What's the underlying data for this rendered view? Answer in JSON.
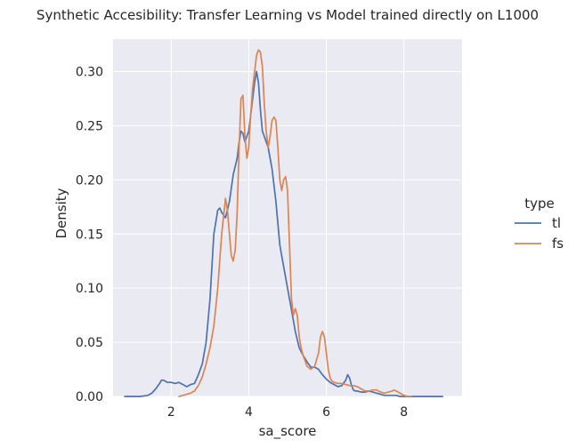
{
  "chart_data": {
    "type": "line",
    "title": "Synthetic Accesibility: Transfer Learning vs Model trained directly on L1000",
    "xlabel": "sa_score",
    "ylabel": "Density",
    "xlim": [
      0.5,
      9.5
    ],
    "ylim": [
      0,
      0.33
    ],
    "xticks": [
      2,
      4,
      6,
      8
    ],
    "xtick_labels": [
      "2",
      "4",
      "6",
      "8"
    ],
    "yticks": [
      0.0,
      0.05,
      0.1,
      0.15,
      0.2,
      0.25,
      0.3
    ],
    "ytick_labels": [
      "0.00",
      "0.05",
      "0.10",
      "0.15",
      "0.20",
      "0.25",
      "0.30"
    ],
    "grid": true,
    "legend": {
      "title": "type",
      "placement": "right"
    },
    "series": [
      {
        "name": "tl",
        "color": "#4c72b0",
        "x": [
          0.8,
          1.0,
          1.2,
          1.4,
          1.5,
          1.6,
          1.7,
          1.75,
          1.8,
          1.85,
          1.9,
          2.0,
          2.1,
          2.2,
          2.3,
          2.4,
          2.5,
          2.6,
          2.7,
          2.8,
          2.9,
          3.0,
          3.1,
          3.2,
          3.25,
          3.3,
          3.4,
          3.5,
          3.6,
          3.7,
          3.75,
          3.8,
          3.85,
          3.9,
          4.0,
          4.1,
          4.15,
          4.2,
          4.25,
          4.3,
          4.35,
          4.4,
          4.5,
          4.6,
          4.7,
          4.8,
          4.9,
          5.0,
          5.1,
          5.2,
          5.3,
          5.4,
          5.5,
          5.6,
          5.7,
          5.8,
          5.9,
          6.0,
          6.1,
          6.2,
          6.3,
          6.4,
          6.5,
          6.55,
          6.6,
          6.65,
          6.7,
          6.75,
          6.8,
          6.9,
          7.0,
          7.1,
          7.2,
          7.3,
          7.4,
          7.5,
          7.6,
          7.7,
          7.8,
          7.9,
          8.0,
          8.2,
          8.4,
          8.6,
          8.8,
          9.0
        ],
        "y": [
          0,
          0,
          0,
          0.001,
          0.003,
          0.007,
          0.012,
          0.015,
          0.015,
          0.014,
          0.013,
          0.013,
          0.012,
          0.013,
          0.011,
          0.009,
          0.011,
          0.012,
          0.02,
          0.03,
          0.05,
          0.09,
          0.15,
          0.172,
          0.174,
          0.17,
          0.165,
          0.18,
          0.205,
          0.22,
          0.235,
          0.245,
          0.243,
          0.235,
          0.245,
          0.275,
          0.29,
          0.3,
          0.29,
          0.265,
          0.245,
          0.24,
          0.23,
          0.21,
          0.18,
          0.14,
          0.12,
          0.1,
          0.08,
          0.06,
          0.045,
          0.038,
          0.032,
          0.027,
          0.027,
          0.025,
          0.02,
          0.016,
          0.013,
          0.011,
          0.009,
          0.01,
          0.015,
          0.02,
          0.017,
          0.01,
          0.006,
          0.005,
          0.005,
          0.004,
          0.004,
          0.005,
          0.004,
          0.003,
          0.002,
          0.001,
          0.001,
          0.001,
          0.001,
          0,
          0,
          0,
          0,
          0,
          0,
          0
        ]
      },
      {
        "name": "fs",
        "color": "#dd8452",
        "x": [
          2.2,
          2.3,
          2.4,
          2.5,
          2.6,
          2.7,
          2.8,
          2.9,
          3.0,
          3.1,
          3.2,
          3.3,
          3.4,
          3.45,
          3.5,
          3.55,
          3.6,
          3.65,
          3.7,
          3.75,
          3.8,
          3.85,
          3.9,
          3.95,
          4.0,
          4.05,
          4.1,
          4.15,
          4.2,
          4.25,
          4.3,
          4.35,
          4.4,
          4.45,
          4.5,
          4.55,
          4.6,
          4.65,
          4.7,
          4.75,
          4.8,
          4.85,
          4.9,
          4.95,
          5.0,
          5.05,
          5.1,
          5.15,
          5.2,
          5.25,
          5.3,
          5.35,
          5.4,
          5.5,
          5.6,
          5.7,
          5.8,
          5.85,
          5.9,
          5.95,
          6.0,
          6.05,
          6.1,
          6.15,
          6.2,
          6.3,
          6.4,
          6.5,
          6.6,
          6.7,
          6.8,
          6.9,
          7.0,
          7.1,
          7.2,
          7.3,
          7.4,
          7.5,
          7.6,
          7.7,
          7.75,
          7.8,
          7.9,
          8.0,
          8.1,
          8.2
        ],
        "y": [
          0,
          0.001,
          0.002,
          0.003,
          0.005,
          0.01,
          0.018,
          0.03,
          0.045,
          0.065,
          0.1,
          0.15,
          0.183,
          0.172,
          0.15,
          0.13,
          0.125,
          0.135,
          0.17,
          0.23,
          0.275,
          0.278,
          0.24,
          0.22,
          0.23,
          0.26,
          0.285,
          0.3,
          0.315,
          0.32,
          0.318,
          0.305,
          0.27,
          0.245,
          0.23,
          0.24,
          0.255,
          0.258,
          0.255,
          0.23,
          0.2,
          0.19,
          0.2,
          0.203,
          0.19,
          0.14,
          0.09,
          0.075,
          0.081,
          0.075,
          0.055,
          0.045,
          0.038,
          0.028,
          0.025,
          0.028,
          0.04,
          0.055,
          0.06,
          0.055,
          0.04,
          0.025,
          0.017,
          0.014,
          0.013,
          0.012,
          0.012,
          0.011,
          0.01,
          0.01,
          0.009,
          0.007,
          0.005,
          0.005,
          0.006,
          0.006,
          0.004,
          0.003,
          0.004,
          0.005,
          0.006,
          0.005,
          0.003,
          0.001,
          0,
          0
        ]
      }
    ]
  }
}
